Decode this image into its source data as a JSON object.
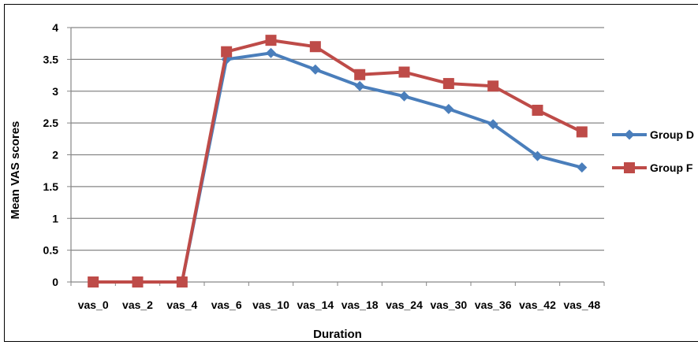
{
  "chart_data": {
    "type": "line",
    "title": "",
    "xlabel": "Duration",
    "ylabel": "Mean VAS scores",
    "categories": [
      "vas_0",
      "vas_2",
      "vas_4",
      "vas_6",
      "vas_10",
      "vas_14",
      "vas_18",
      "vas_24",
      "vas_30",
      "vas_36",
      "vas_42",
      "vas_48"
    ],
    "ylim": [
      0,
      4
    ],
    "yticks": [
      "0",
      "0.5",
      "1",
      "1.5",
      "2",
      "2.5",
      "3",
      "3.5",
      "4"
    ],
    "grid": true,
    "legend_position": "right",
    "series": [
      {
        "name": "Group D",
        "legend_label": "Group D",
        "color": "#4a7ebb",
        "marker": "diamond",
        "values": [
          0,
          0,
          0,
          3.5,
          3.6,
          3.34,
          3.08,
          2.92,
          2.72,
          2.48,
          1.98,
          1.8
        ]
      },
      {
        "name": "Group F",
        "legend_label": "Group F",
        "color": "#be4b48",
        "marker": "square",
        "values": [
          0,
          0,
          0,
          3.62,
          3.8,
          3.7,
          3.26,
          3.3,
          3.12,
          3.08,
          2.7,
          2.36
        ]
      }
    ]
  }
}
